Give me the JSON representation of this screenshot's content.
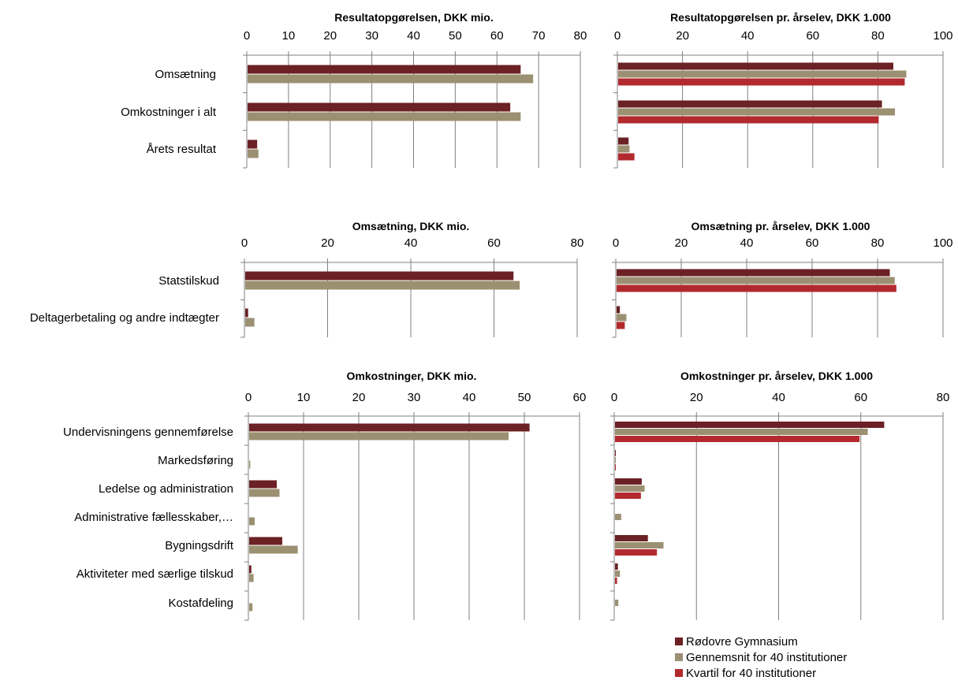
{
  "colors": {
    "rodovre": "#6B2125",
    "gennemsnit": "#9C9072",
    "kvartil": "#B22A2E",
    "grid": "#808080"
  },
  "legend": [
    {
      "key": "rodovre",
      "label": "Rødovre Gymnasium"
    },
    {
      "key": "gennemsnit",
      "label": "Gennemsnit for 40 institutioner"
    },
    {
      "key": "kvartil",
      "label": "Kvartil for 40 institutioner"
    }
  ],
  "chart_data": [
    {
      "type": "bar",
      "title": "Resultatopgørelsen, DKK mio.",
      "categories": [
        "Omsætning",
        "Omkostninger i alt",
        "Årets resultat"
      ],
      "xlim": [
        0,
        80
      ],
      "ticks": [
        0,
        10,
        20,
        30,
        40,
        50,
        60,
        70,
        80
      ],
      "series": [
        {
          "name": "Rødovre Gymnasium",
          "color": "rodovre",
          "values": [
            65.5,
            63,
            2.3
          ]
        },
        {
          "name": "Gennemsnit for 40 institutioner",
          "color": "gennemsnit",
          "values": [
            68.5,
            65.5,
            2.6
          ]
        }
      ]
    },
    {
      "type": "bar",
      "title": "Resultatopgørelsen pr. årselev, DKK 1.000",
      "categories": [
        "Omsætning",
        "Omkostninger i alt",
        "Årets resultat"
      ],
      "xlim": [
        0,
        100
      ],
      "ticks": [
        0,
        20,
        40,
        60,
        80,
        100
      ],
      "series": [
        {
          "name": "Rødovre Gymnasium",
          "color": "rodovre",
          "values": [
            84.5,
            81,
            3.2
          ]
        },
        {
          "name": "Gennemsnit for 40 institutioner",
          "color": "gennemsnit",
          "values": [
            88.5,
            85,
            3.5
          ]
        },
        {
          "name": "Kvartil for 40 institutioner",
          "color": "kvartil",
          "values": [
            88,
            80,
            5
          ]
        }
      ]
    },
    {
      "type": "bar",
      "title": "Omsætning, DKK mio.",
      "categories": [
        "Statstilskud",
        "Deltagerbetaling og andre indtægter"
      ],
      "xlim": [
        0,
        80
      ],
      "ticks": [
        0,
        20,
        40,
        60,
        80
      ],
      "series": [
        {
          "name": "Rødovre Gymnasium",
          "color": "rodovre",
          "values": [
            64.5,
            0.7
          ]
        },
        {
          "name": "Gennemsnit for 40 institutioner",
          "color": "gennemsnit",
          "values": [
            66,
            2.2
          ]
        }
      ]
    },
    {
      "type": "bar",
      "title": "Omsætning pr. årselev, DKK 1.000",
      "categories": [
        "Statstilskud",
        "Deltagerbetaling og andre indtægter"
      ],
      "xlim": [
        0,
        100
      ],
      "ticks": [
        0,
        20,
        40,
        60,
        80,
        100
      ],
      "series": [
        {
          "name": "Rødovre Gymnasium",
          "color": "rodovre",
          "values": [
            83.5,
            1
          ]
        },
        {
          "name": "Gennemsnit for 40 institutioner",
          "color": "gennemsnit",
          "values": [
            85,
            3
          ]
        },
        {
          "name": "Kvartil for 40 institutioner",
          "color": "kvartil",
          "values": [
            85.5,
            2.5
          ]
        }
      ]
    },
    {
      "type": "bar",
      "title": "Omkostninger, DKK mio.",
      "categories": [
        "Undervisningens gennemførelse",
        "Markedsføring",
        "Ledelse og administration",
        "Administrative fællesskaber,…",
        "Bygningsdrift",
        "Aktiviteter med særlige tilskud",
        "Kostafdeling"
      ],
      "xlim": [
        0,
        60
      ],
      "ticks": [
        0,
        10,
        20,
        30,
        40,
        50,
        60
      ],
      "series": [
        {
          "name": "Rødovre Gymnasium",
          "color": "rodovre",
          "values": [
            50.8,
            0,
            5,
            0,
            6,
            0.4,
            0
          ]
        },
        {
          "name": "Gennemsnit for 40 institutioner",
          "color": "gennemsnit",
          "values": [
            47,
            0.2,
            5.5,
            1,
            8.8,
            0.8,
            0.6
          ]
        }
      ]
    },
    {
      "type": "bar",
      "title": "Omkostninger pr. årselev, DKK 1.000",
      "categories": [
        "Undervisningens gennemførelse",
        "Markedsføring",
        "Ledelse og administration",
        "Administrative fællesskaber,…",
        "Bygningsdrift",
        "Aktiviteter med særlige tilskud",
        "Kostafdeling"
      ],
      "xlim": [
        0,
        80
      ],
      "ticks": [
        0,
        20,
        40,
        60,
        80
      ],
      "series": [
        {
          "name": "Rødovre Gymnasium",
          "color": "rodovre",
          "values": [
            65.5,
            0.2,
            6.5,
            0,
            8,
            0.7,
            0
          ]
        },
        {
          "name": "Gennemsnit for 40 institutioner",
          "color": "gennemsnit",
          "values": [
            61.5,
            0.2,
            7.2,
            1.5,
            11.8,
            1.2,
            0.8
          ]
        },
        {
          "name": "Kvartil for 40 institutioner",
          "color": "kvartil",
          "values": [
            59.5,
            0.2,
            6.3,
            0,
            10.2,
            0.5,
            0
          ]
        }
      ]
    }
  ]
}
